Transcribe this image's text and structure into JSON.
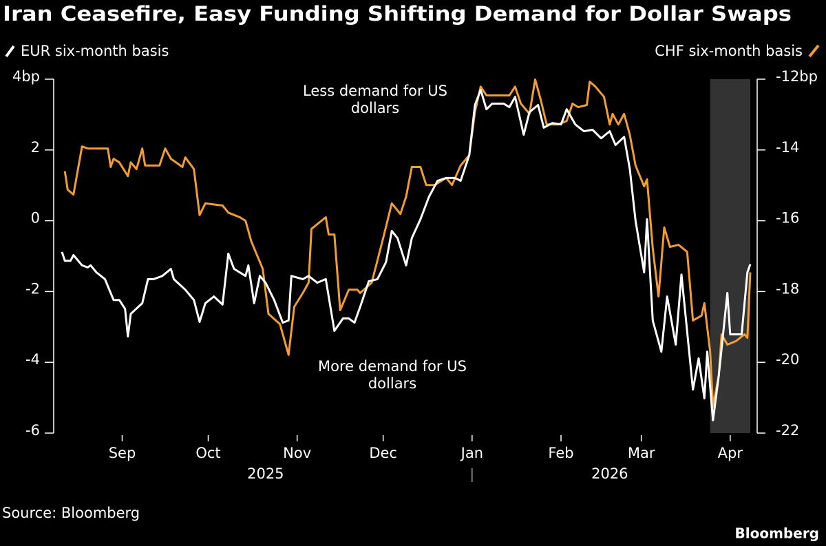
{
  "chart_data": {
    "type": "line",
    "title": "Iran Ceasefire, Easy Funding Shifting Demand for Dollar Swaps",
    "source": "Source: Bloomberg",
    "credit": "Bloomberg",
    "xlim": [
      0,
      240
    ],
    "xticks": [
      {
        "value": 21,
        "label": "Sep"
      },
      {
        "value": 51,
        "label": "Oct"
      },
      {
        "value": 82,
        "label": "Nov"
      },
      {
        "value": 112,
        "label": "Dec"
      },
      {
        "value": 143,
        "label": "Jan"
      },
      {
        "value": 174,
        "label": "Feb"
      },
      {
        "value": 202,
        "label": "Mar"
      },
      {
        "value": 233,
        "label": "Apr"
      }
    ],
    "year_labels": [
      {
        "value": 71,
        "label": "2025"
      },
      {
        "value": 191,
        "label": "2026"
      }
    ],
    "ylim": [
      -6,
      4
    ],
    "yticks": [
      {
        "value": 4,
        "label": "4bp"
      },
      2,
      0,
      -2,
      -4,
      -6
    ],
    "y2lim": [
      -22,
      -12
    ],
    "y2ticks": [
      {
        "value": -12,
        "label": "-12bp"
      },
      -14,
      -16,
      -18,
      -20,
      -22
    ],
    "highlight": [
      226,
      240
    ],
    "annotations": [
      [
        "Less demand for US",
        "dollars"
      ],
      [
        "More demand for US",
        "dollars"
      ]
    ],
    "series": [
      {
        "name": "EUR six-month basis",
        "color": "#ffffff",
        "axis": "y",
        "x": [
          0,
          1,
          3,
          4,
          7,
          9,
          10,
          12,
          15,
          18,
          20,
          22,
          23,
          24,
          28,
          30,
          32,
          35,
          38,
          39,
          43,
          46,
          48,
          50,
          53,
          56,
          58,
          60,
          64,
          65,
          67,
          69,
          71,
          74,
          77,
          79,
          80,
          84,
          86,
          89,
          92,
          95,
          98,
          100,
          102,
          104,
          107,
          110,
          113,
          115,
          117,
          120,
          122,
          125,
          128,
          131,
          134,
          137,
          139,
          142,
          144,
          146,
          148,
          150,
          154,
          156,
          158,
          161,
          163,
          166,
          168,
          171,
          174,
          176,
          179,
          182,
          185,
          188,
          191,
          193,
          196,
          198,
          200,
          203,
          204,
          206,
          209,
          211,
          214,
          216,
          220,
          222,
          224,
          225,
          227,
          229,
          232,
          233,
          237,
          239,
          240
        ],
        "values": [
          -0.88,
          -1.13,
          -1.13,
          -0.97,
          -1.26,
          -1.32,
          -1.26,
          -1.46,
          -1.65,
          -2.24,
          -2.24,
          -2.49,
          -3.27,
          -2.63,
          -2.33,
          -1.65,
          -1.65,
          -1.56,
          -1.36,
          -1.65,
          -1.95,
          -2.24,
          -2.86,
          -2.33,
          -2.14,
          -2.37,
          -0.93,
          -1.36,
          -1.56,
          -1.26,
          -2.33,
          -1.56,
          -1.75,
          -2.24,
          -2.88,
          -2.82,
          -1.56,
          -1.65,
          -1.56,
          -1.75,
          -1.65,
          -3.11,
          -2.76,
          -2.76,
          -2.88,
          -2.43,
          -1.71,
          -1.65,
          -1.17,
          -0.29,
          -0.49,
          -1.26,
          -0.49,
          0.04,
          0.68,
          1.13,
          1.21,
          1.21,
          1.13,
          1.85,
          3.27,
          3.7,
          3.15,
          3.31,
          3.31,
          3.21,
          3.5,
          2.43,
          3.07,
          3.27,
          2.63,
          2.76,
          2.72,
          3.15,
          2.72,
          2.53,
          2.57,
          2.33,
          2.53,
          2.14,
          2.37,
          1.46,
          0,
          -1.46,
          0.04,
          -2.82,
          -3.7,
          -2.14,
          -3.5,
          -1.52,
          -4.77,
          -3.89,
          -5.02,
          -3.7,
          -5.64,
          -4.38,
          -2.04,
          -3.21,
          -3.21,
          -1.46,
          -1.23
        ]
      },
      {
        "name": "CHF six-month basis",
        "color": "#f39c31",
        "axis": "y2",
        "x": [
          1,
          2,
          4,
          7,
          9,
          16,
          17,
          18,
          20,
          23,
          24,
          26,
          28,
          29,
          34,
          36,
          38,
          42,
          43,
          46,
          48,
          50,
          56,
          58,
          62,
          64,
          66,
          70,
          72,
          76,
          79,
          81,
          84,
          86,
          87,
          89,
          92,
          93,
          95,
          97,
          100,
          103,
          104,
          108,
          112,
          115,
          118,
          120,
          122,
          125,
          127,
          130,
          134,
          136,
          139,
          142,
          144,
          146,
          148,
          151,
          156,
          158,
          160,
          163,
          165,
          167,
          169,
          173,
          176,
          178,
          180,
          183,
          184,
          186,
          189,
          191,
          192,
          194,
          196,
          198,
          200,
          203,
          204,
          206,
          208,
          210,
          212,
          215,
          218,
          220,
          223,
          224,
          226,
          227,
          229,
          230,
          232,
          235,
          238,
          239,
          240
        ],
        "values": [
          -14.6,
          -15.12,
          -15.26,
          -13.9,
          -13.96,
          -13.96,
          -14.48,
          -14.25,
          -14.35,
          -14.74,
          -14.35,
          -14.54,
          -13.96,
          -14.44,
          -14.44,
          -13.96,
          -14.25,
          -14.48,
          -14.21,
          -14.54,
          -15.84,
          -15.51,
          -15.57,
          -15.77,
          -15.9,
          -16,
          -16.58,
          -17.36,
          -18.63,
          -18.92,
          -19.79,
          -18.43,
          -18.04,
          -17.75,
          -16.23,
          -16.1,
          -15.9,
          -16.39,
          -16.39,
          -18.53,
          -17.95,
          -17.95,
          -18.04,
          -17.75,
          -16.49,
          -15.51,
          -15.81,
          -15.32,
          -14.48,
          -14.48,
          -14.99,
          -14.99,
          -14.79,
          -14.99,
          -14.44,
          -14.15,
          -12.93,
          -12.21,
          -12.46,
          -12.46,
          -12.46,
          -12.21,
          -12.69,
          -12.98,
          -12.01,
          -12.6,
          -13.28,
          -13.28,
          -13.18,
          -12.69,
          -12.79,
          -12.73,
          -12.07,
          -12.21,
          -12.5,
          -13.28,
          -12.98,
          -13.28,
          -12.98,
          -13.57,
          -14.44,
          -15.03,
          -14.83,
          -16.78,
          -18.14,
          -16.19,
          -16.74,
          -16.68,
          -16.88,
          -18.82,
          -18.68,
          -18.33,
          -19.7,
          -21.25,
          -20.38,
          -19.21,
          -19.5,
          -19.4,
          -19.21,
          -19.31,
          -17.46
        ]
      }
    ]
  }
}
